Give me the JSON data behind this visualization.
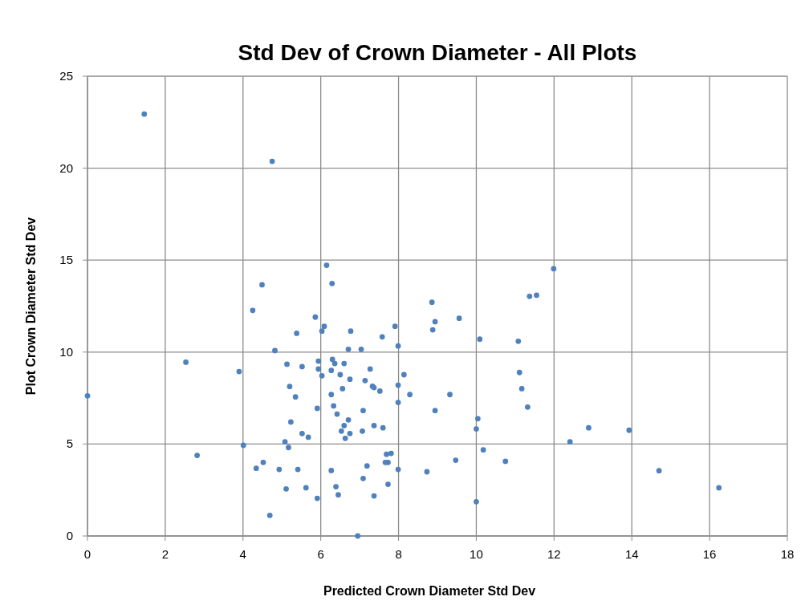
{
  "chart_data": {
    "type": "scatter",
    "title": "Std Dev of Crown Diameter - All Plots",
    "xlabel": "Predicted Crown Diameter Std Dev",
    "ylabel": "Plot Crown Diameter Std Dev",
    "xlim": [
      0,
      18
    ],
    "xticks": [
      0,
      2,
      4,
      6,
      8,
      10,
      12,
      14,
      16,
      18
    ],
    "ylim": [
      0,
      25
    ],
    "yticks": [
      0,
      5,
      10,
      15,
      20,
      25
    ],
    "grid": true,
    "marker": "circle",
    "series": [
      {
        "color": "#4f81bd",
        "x": [
          0,
          1.46,
          2.53,
          2.82,
          3.9,
          4.01,
          4.25,
          4.34,
          4.49,
          4.52,
          4.69,
          4.75,
          4.82,
          4.93,
          5.08,
          5.11,
          5.13,
          5.17,
          5.2,
          5.23,
          5.35,
          5.38,
          5.41,
          5.52,
          5.52,
          5.62,
          5.68,
          5.86,
          5.91,
          5.91,
          5.94,
          5.94,
          6.03,
          6.03,
          6.09,
          6.15,
          6.27,
          6.27,
          6.27,
          6.29,
          6.3,
          6.33,
          6.36,
          6.39,
          6.42,
          6.45,
          6.5,
          6.53,
          6.56,
          6.6,
          6.6,
          6.63,
          6.71,
          6.71,
          6.75,
          6.75,
          6.77,
          6.95,
          7.04,
          7.07,
          7.09,
          7.09,
          7.14,
          7.19,
          7.27,
          7.33,
          7.37,
          7.37,
          7.37,
          7.52,
          7.58,
          7.6,
          7.66,
          7.69,
          7.73,
          7.73,
          7.81,
          7.91,
          7.99,
          7.99,
          7.99,
          7.99,
          8.14,
          8.29,
          8.73,
          8.86,
          8.88,
          8.94,
          8.94,
          9.32,
          9.47,
          9.56,
          10.0,
          10.0,
          10.04,
          10.09,
          10.18,
          10.75,
          11.08,
          11.11,
          11.17,
          11.32,
          11.37,
          11.55,
          11.99,
          12.41,
          12.89,
          13.93,
          14.7,
          16.24
        ],
        "values": [
          7.62,
          22.94,
          9.45,
          4.38,
          8.94,
          4.93,
          12.27,
          3.68,
          13.66,
          4.0,
          1.12,
          20.37,
          10.08,
          3.62,
          5.12,
          2.56,
          9.34,
          4.81,
          8.13,
          6.2,
          7.56,
          11.02,
          3.62,
          9.21,
          5.57,
          2.62,
          5.37,
          11.9,
          6.94,
          2.05,
          9.51,
          9.08,
          8.71,
          11.14,
          11.4,
          14.72,
          9.0,
          7.69,
          3.56,
          13.73,
          9.6,
          7.07,
          9.38,
          2.68,
          6.63,
          2.24,
          8.77,
          5.7,
          8.01,
          9.38,
          6.0,
          5.31,
          10.15,
          6.31,
          8.52,
          5.57,
          11.14,
          0,
          10.15,
          5.7,
          6.82,
          3.13,
          8.45,
          3.81,
          9.08,
          8.14,
          8.07,
          6.0,
          2.18,
          7.88,
          10.83,
          5.88,
          4.0,
          4.44,
          4.0,
          2.81,
          4.49,
          11.4,
          10.33,
          8.2,
          7.26,
          3.62,
          8.77,
          7.69,
          3.49,
          12.71,
          11.21,
          11.65,
          6.82,
          7.69,
          4.12,
          11.84,
          5.82,
          1.86,
          6.38,
          10.7,
          4.68,
          4.06,
          10.59,
          8.89,
          8.01,
          7.01,
          13.03,
          13.09,
          14.53,
          5.12,
          5.88,
          5.75,
          3.55,
          2.62
        ]
      }
    ]
  }
}
